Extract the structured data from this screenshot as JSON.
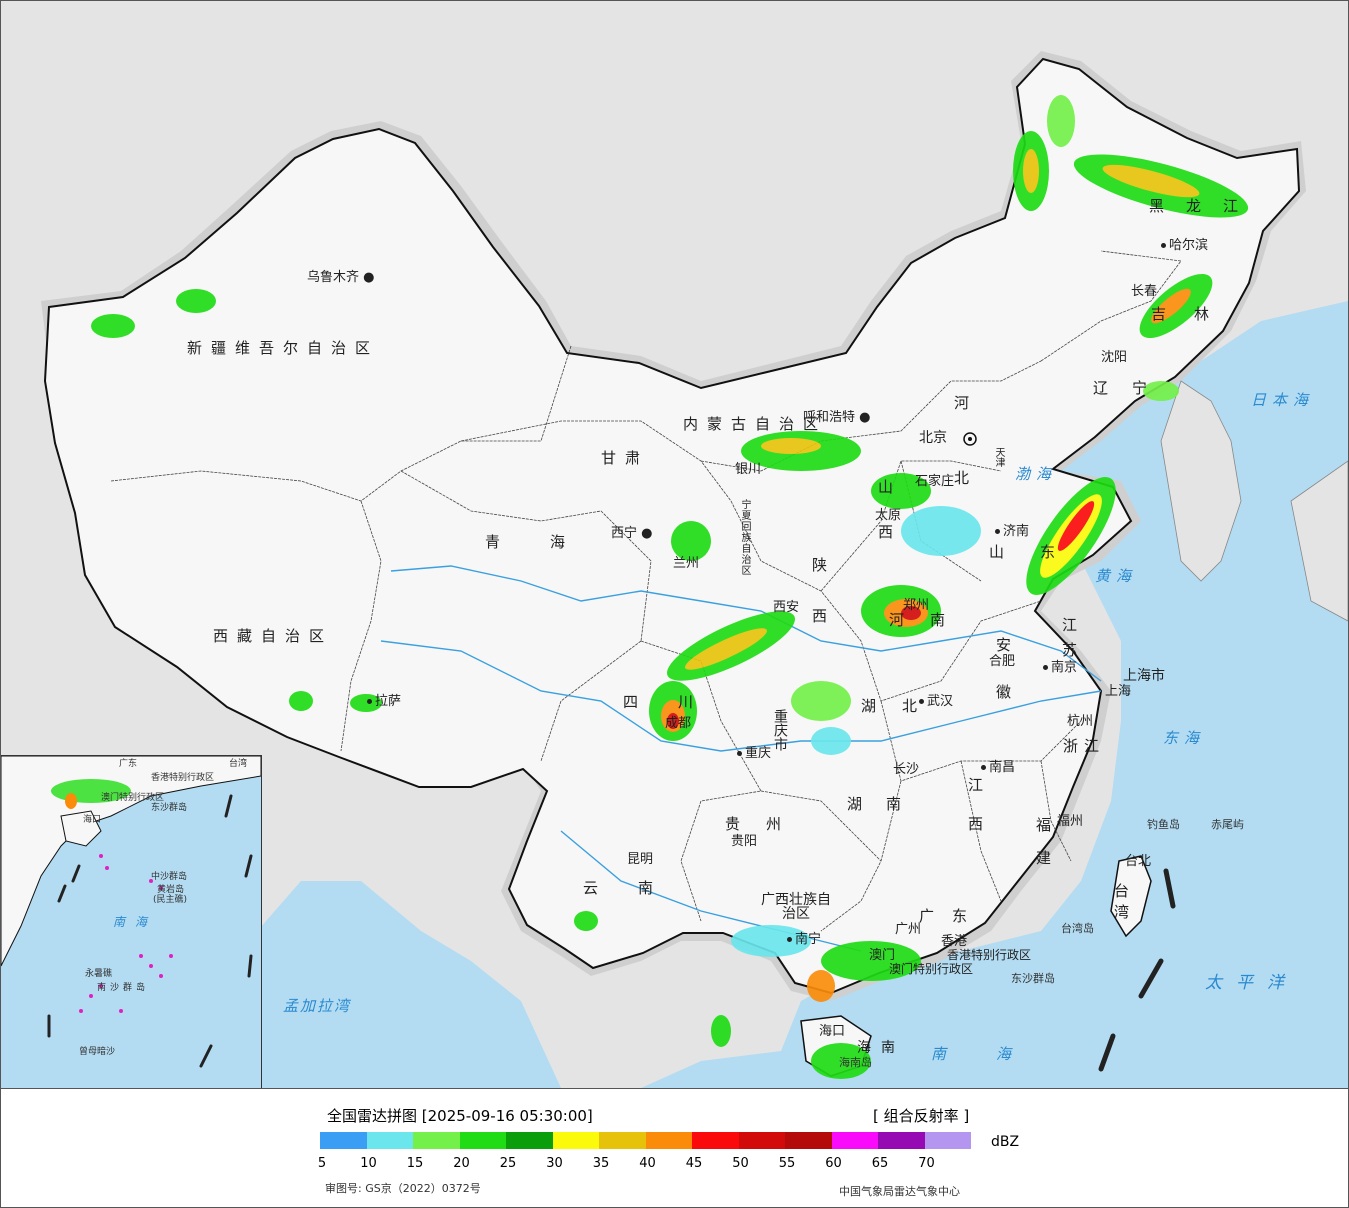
{
  "title": "全国雷达拼图 [2025-09-16 05:30:00]",
  "product": "[ 组合反射率 ]",
  "unit": "dBZ",
  "legend": {
    "ticks": [
      "5",
      "10",
      "15",
      "20",
      "25",
      "30",
      "35",
      "40",
      "45",
      "50",
      "55",
      "60",
      "65",
      "70"
    ],
    "colors": [
      "#3b9ef5",
      "#6ae6ec",
      "#73f04a",
      "#1fdc14",
      "#0a9e0a",
      "#fafa0a",
      "#e6c30a",
      "#fa8c0a",
      "#fa0a0a",
      "#d20a0a",
      "#b40a0a",
      "#fa0afa",
      "#960ab4",
      "#b496f0"
    ]
  },
  "footer_left": "审图号: GS京（2022）0372号",
  "footer_right": "中国气象局雷达气象中心",
  "provinces": [
    "新疆维吾尔自治区",
    "西藏自治区",
    "青海",
    "甘肃",
    "内蒙古自治区",
    "四川",
    "云南",
    "黑龙江",
    "吉林",
    "辽宁",
    "河北",
    "山西",
    "陕西",
    "河南",
    "山东",
    "江苏",
    "安徽",
    "湖北",
    "湖南",
    "江西",
    "浙江",
    "福建",
    "广东",
    "贵州",
    "台湾",
    "宁夏回族自治区",
    "广西壮族自治区",
    "重庆市",
    "上海市",
    "海南",
    "北京",
    "天津",
    "香港特别行政区",
    "澳门特别行政区"
  ],
  "cities": [
    "乌鲁木齐",
    "拉萨",
    "西宁",
    "兰州",
    "银川",
    "呼和浩特",
    "太原",
    "石家庄",
    "济南",
    "郑州",
    "西安",
    "成都",
    "重庆",
    "武汉",
    "合肥",
    "南京",
    "上海",
    "杭州",
    "南昌",
    "长沙",
    "贵阳",
    "昆明",
    "南宁",
    "广州",
    "福州",
    "台北",
    "哈尔滨",
    "长春",
    "沈阳",
    "海口",
    "香港",
    "澳门"
  ],
  "seas": [
    "日本海",
    "渤海",
    "黄海",
    "东海",
    "太平洋",
    "南海",
    "孟加拉湾"
  ],
  "islands": [
    "钓鱼岛",
    "赤尾屿",
    "台湾岛",
    "东沙群岛",
    "海南岛"
  ],
  "inset_labels": [
    "东沙群岛",
    "中沙群岛",
    "黄岩岛",
    "(民主礁)",
    "南海",
    "永暑礁",
    "南沙群岛",
    "曾母暗沙",
    "香港特别行政区",
    "澳门特别行政区",
    "广东",
    "台湾",
    "海口"
  ]
}
